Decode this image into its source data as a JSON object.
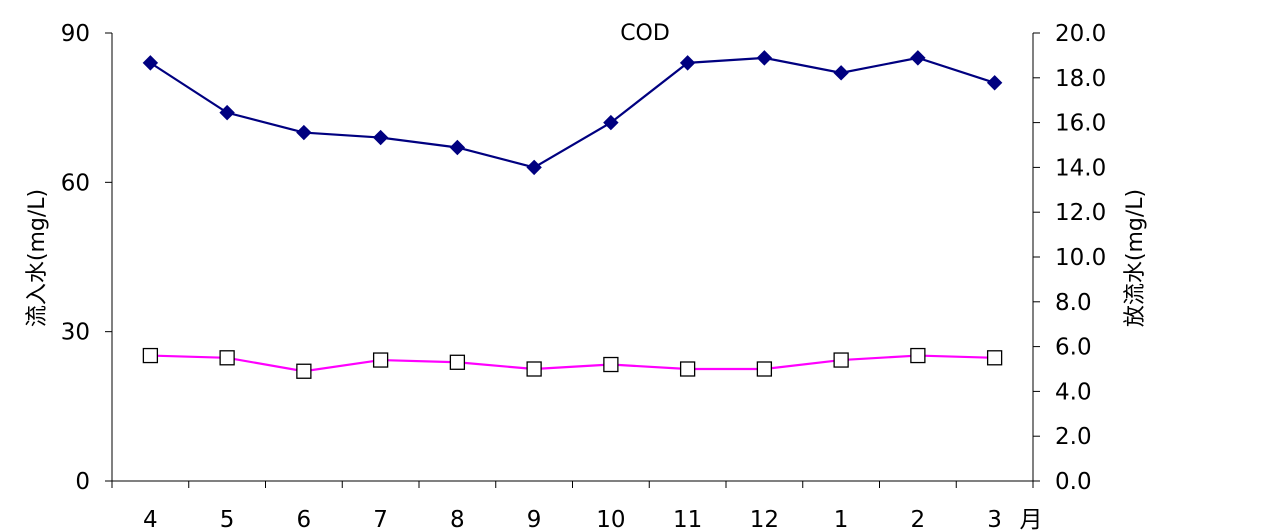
{
  "chart_data": {
    "type": "line",
    "title": "COD",
    "xlabel": "",
    "x_unit_label": "月",
    "categories": [
      "4",
      "5",
      "6",
      "7",
      "8",
      "9",
      "10",
      "11",
      "12",
      "1",
      "2",
      "3"
    ],
    "y_left": {
      "label": "流入水(mg/L)",
      "ylim": [
        0,
        90
      ],
      "ticks": [
        "0",
        "30",
        "60",
        "90"
      ]
    },
    "y_right": {
      "label": "放流水(mg/L)",
      "ylim": [
        0,
        20
      ],
      "ticks": [
        "0.0",
        "2.0",
        "4.0",
        "6.0",
        "8.0",
        "10.0",
        "12.0",
        "14.0",
        "16.0",
        "18.0",
        "20.0"
      ]
    },
    "series": [
      {
        "axis": "left",
        "color": "#000080",
        "marker": "filled-diamond",
        "values": [
          84,
          74,
          70,
          69,
          67,
          63,
          72,
          84,
          85,
          82,
          85,
          80
        ]
      },
      {
        "axis": "right",
        "color": "#ff00ff",
        "marker": "hollow-square",
        "values": [
          5.6,
          5.5,
          4.9,
          5.4,
          5.3,
          5.0,
          5.2,
          5.0,
          5.0,
          5.4,
          5.6,
          5.5
        ]
      }
    ],
    "grid": false,
    "legend": "none"
  }
}
